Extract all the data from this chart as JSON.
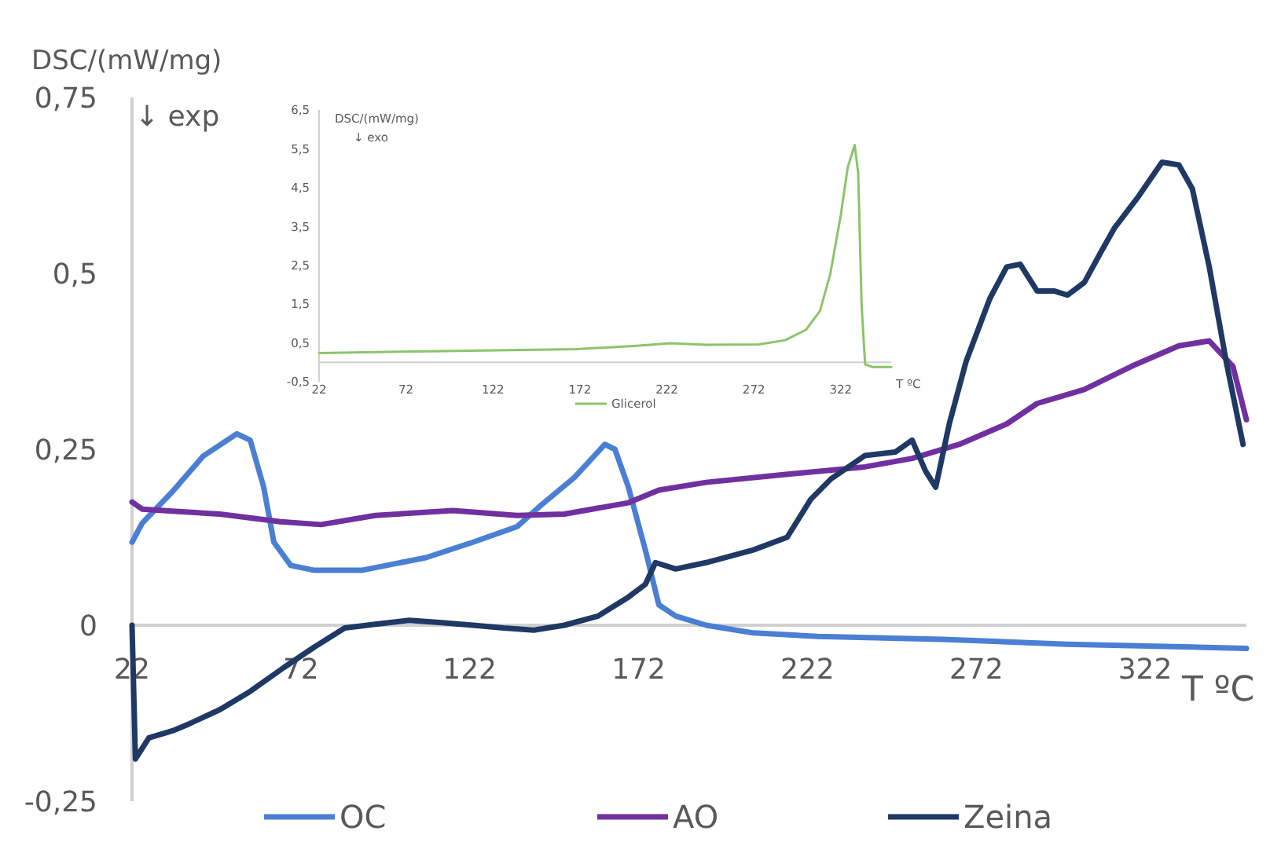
{
  "chart_data": [
    {
      "type": "line",
      "ylabel": "DSC/(mW/mg)",
      "xlabel": "T ºC",
      "annotations": [
        "↓ exp"
      ],
      "xlim": [
        22,
        352
      ],
      "xticks": [
        22,
        72,
        122,
        172,
        222,
        272,
        322
      ],
      "ylim": [
        -0.25,
        0.75
      ],
      "yticks": [
        {
          "value": -0.25,
          "label": "-0,25"
        },
        {
          "value": 0,
          "label": "0"
        },
        {
          "value": 0.25,
          "label": "0,25"
        },
        {
          "value": 0.5,
          "label": "0,5"
        },
        {
          "value": 0.75,
          "label": "0,75"
        }
      ],
      "grid": false,
      "legend": "bottom",
      "marker": "none",
      "line_style": "solid",
      "series": [
        {
          "name": "OC",
          "color": "#4a7fd4",
          "x": [
            22,
            25,
            34,
            43,
            53,
            57,
            61,
            64,
            69,
            76,
            90,
            109,
            123,
            136,
            143,
            153,
            162,
            165,
            169,
            174,
            178,
            183,
            192,
            206,
            225,
            262,
            299,
            336,
            352
          ],
          "values": [
            0.118,
            0.145,
            0.19,
            0.24,
            0.272,
            0.263,
            0.196,
            0.118,
            0.085,
            0.078,
            0.078,
            0.096,
            0.118,
            0.14,
            0.17,
            0.21,
            0.257,
            0.25,
            0.196,
            0.107,
            0.029,
            0.013,
            0,
            -0.011,
            -0.016,
            -0.02,
            -0.027,
            -0.031,
            -0.033
          ]
        },
        {
          "name": "AO",
          "color": "#7030a0",
          "x": [
            22,
            25,
            34,
            48,
            66,
            78,
            94,
            117,
            136,
            150,
            169,
            178,
            192,
            215,
            239,
            253,
            267,
            281,
            290,
            304,
            318,
            332,
            341,
            348,
            352
          ],
          "values": [
            0.175,
            0.165,
            0.162,
            0.158,
            0.147,
            0.143,
            0.156,
            0.163,
            0.156,
            0.158,
            0.174,
            0.192,
            0.203,
            0.214,
            0.225,
            0.237,
            0.257,
            0.286,
            0.315,
            0.335,
            0.368,
            0.397,
            0.404,
            0.368,
            0.292
          ]
        },
        {
          "name": "Zeina",
          "color": "#1f3864",
          "x": [
            22,
            23,
            27,
            34,
            39,
            48,
            57,
            67,
            76,
            85,
            95,
            104,
            113,
            123,
            132,
            141,
            150,
            160,
            169,
            174,
            177,
            183,
            192,
            206,
            216,
            223,
            229,
            239,
            248,
            253,
            257,
            260,
            264,
            269,
            276,
            281,
            285,
            290,
            295,
            299,
            304,
            309,
            313,
            320,
            327,
            332,
            336,
            341,
            346,
            351
          ],
          "values": [
            0,
            -0.19,
            -0.16,
            -0.15,
            -0.14,
            -0.12,
            -0.094,
            -0.06,
            -0.031,
            -0.004,
            0.002,
            0.007,
            0.004,
            0,
            -0.004,
            -0.007,
            0,
            0.013,
            0.04,
            0.058,
            0.089,
            0.08,
            0.089,
            0.107,
            0.125,
            0.179,
            0.208,
            0.241,
            0.246,
            0.263,
            0.219,
            0.196,
            0.286,
            0.375,
            0.464,
            0.509,
            0.513,
            0.475,
            0.475,
            0.469,
            0.487,
            0.531,
            0.565,
            0.609,
            0.658,
            0.654,
            0.62,
            0.509,
            0.375,
            0.257
          ]
        }
      ]
    },
    {
      "type": "line",
      "ylabel": "DSC/(mW/mg)",
      "xlabel": "T ºC",
      "annotations": [
        "↓ exo"
      ],
      "xlim": [
        22,
        351
      ],
      "xticks": [
        22,
        72,
        122,
        172,
        222,
        272,
        322
      ],
      "ylim": [
        -0.5,
        6.5
      ],
      "yticks": [
        {
          "value": -0.5,
          "label": "-0,5"
        },
        {
          "value": 0.5,
          "label": "0,5"
        },
        {
          "value": 1.5,
          "label": "1,5"
        },
        {
          "value": 2.5,
          "label": "2,5"
        },
        {
          "value": 3.5,
          "label": "3,5"
        },
        {
          "value": 4.5,
          "label": "4,5"
        },
        {
          "value": 5.5,
          "label": "5,5"
        },
        {
          "value": 6.5,
          "label": "6,5"
        }
      ],
      "grid": false,
      "legend": "bottom",
      "marker": "none",
      "line_style": "solid",
      "series": [
        {
          "name": "Glicerol",
          "color": "#8cc46a",
          "x": [
            22,
            94,
            170,
            203,
            224,
            245,
            275,
            290,
            302,
            310,
            316,
            322,
            326,
            330,
            332,
            334,
            336,
            340,
            351
          ],
          "values": [
            0.24,
            0.29,
            0.34,
            0.42,
            0.49,
            0.45,
            0.46,
            0.57,
            0.84,
            1.32,
            2.28,
            3.79,
            5.02,
            5.6,
            4.88,
            1.46,
            -0.05,
            -0.12,
            -0.12
          ]
        }
      ]
    }
  ]
}
